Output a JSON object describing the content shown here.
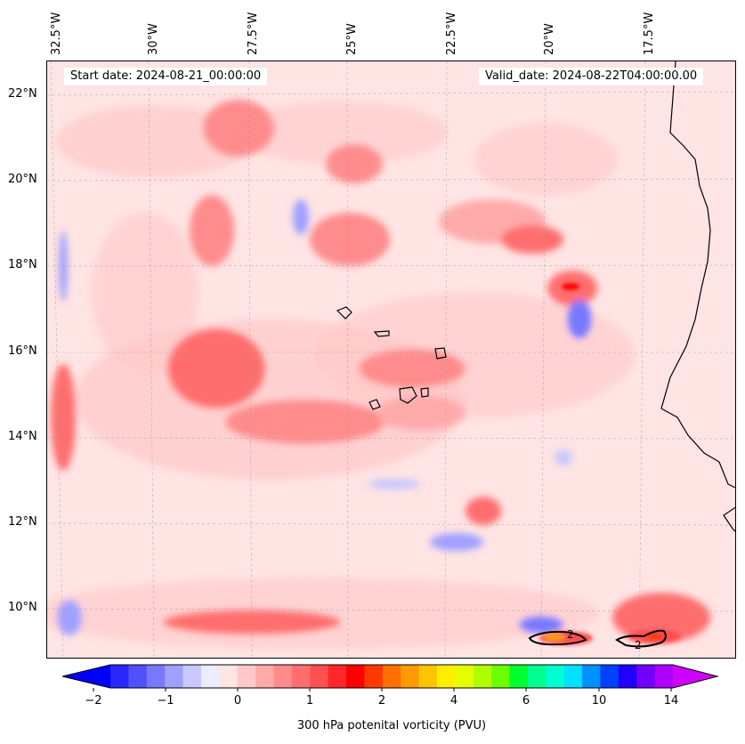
{
  "map": {
    "title_start": "Start date: 2024-08-21_00:00:00",
    "title_valid": "Valid_date: 2024-08-22T04:00:00.00",
    "variable": "300 hPa potenital vorticity (PVU)",
    "lon_labels": [
      "32.5°W",
      "30°W",
      "27.5°W",
      "25°W",
      "22.5°W",
      "20°W",
      "17.5°W"
    ],
    "lat_labels": [
      "22°N",
      "20°N",
      "18°N",
      "16°N",
      "14°N",
      "12°N",
      "10°N"
    ],
    "contour_labels": [
      "2",
      "2"
    ]
  },
  "colorbar": {
    "tick_labels": [
      "−2",
      "−1",
      "0",
      "1",
      "2",
      "4",
      "6",
      "10",
      "14"
    ],
    "colors": [
      "#0000ff",
      "#2828ff",
      "#5050ff",
      "#7878ff",
      "#a0a0ff",
      "#c8c8ff",
      "#ececff",
      "#ffe4e4",
      "#ffc8c8",
      "#ffaaaa",
      "#ff8c8c",
      "#ff6e6e",
      "#ff5050",
      "#ff2828",
      "#ff0000",
      "#ff3a00",
      "#ff7000",
      "#ff9a00",
      "#ffc400",
      "#ffee00",
      "#e6ff00",
      "#b0ff00",
      "#6cff00",
      "#00ff30",
      "#00ff90",
      "#00ffd0",
      "#00e0ff",
      "#0090ff",
      "#0040ff",
      "#2000ff",
      "#7000ff",
      "#b000ff",
      "#d000ff"
    ]
  },
  "colors": {
    "frame": "#000000",
    "coast": "#000000"
  }
}
